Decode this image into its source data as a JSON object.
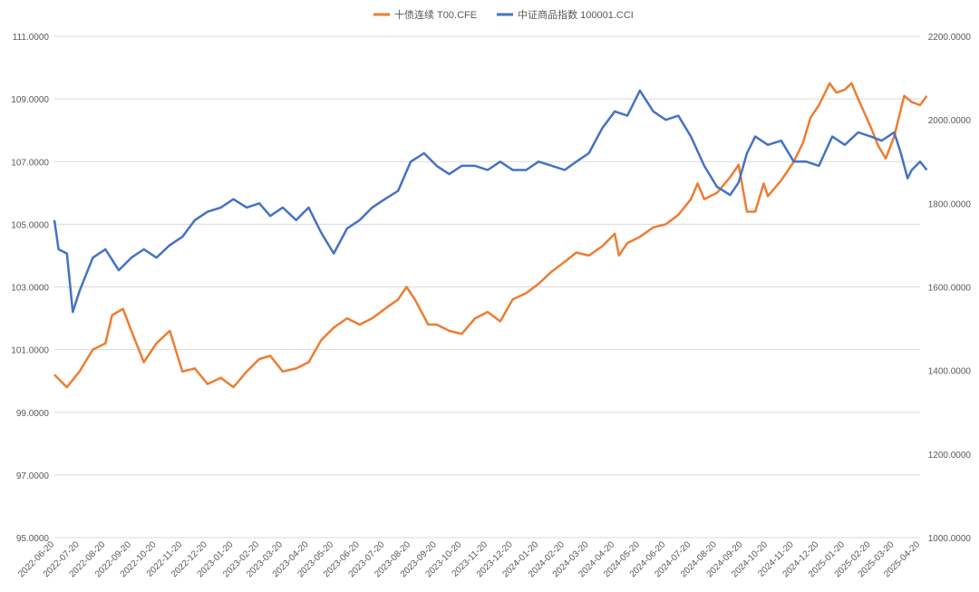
{
  "chart_data": {
    "type": "line",
    "title": "",
    "legend_position": "top-center",
    "grid": true,
    "x_ticks": [
      "2022-06-20",
      "2022-07-20",
      "2022-08-20",
      "2022-09-20",
      "2022-10-20",
      "2022-11-20",
      "2022-12-20",
      "2023-01-20",
      "2023-02-20",
      "2023-03-20",
      "2023-04-20",
      "2023-05-20",
      "2023-06-20",
      "2023-07-20",
      "2023-08-20",
      "2023-09-20",
      "2023-10-20",
      "2023-11-20",
      "2023-12-20",
      "2024-01-20",
      "2024-02-20",
      "2024-03-20",
      "2024-04-20",
      "2024-05-20",
      "2024-06-20",
      "2024-07-20",
      "2024-08-20",
      "2024-09-20",
      "2024-10-20",
      "2024-11-20",
      "2024-12-20",
      "2025-01-20",
      "2025-02-20",
      "2025-03-20",
      "2025-04-20"
    ],
    "y_left": {
      "ticks": [
        "95.0000",
        "97.0000",
        "99.0000",
        "101.0000",
        "103.0000",
        "105.0000",
        "107.0000",
        "109.0000",
        "111.0000"
      ],
      "min": 95,
      "max": 111
    },
    "y_right": {
      "ticks": [
        "1000.0000",
        "1200.0000",
        "1400.0000",
        "1600.0000",
        "1800.0000",
        "2000.0000",
        "2200.0000"
      ],
      "min": 1000,
      "max": 2200
    },
    "series": [
      {
        "name": "十债连续 T00.CFE",
        "axis": "left",
        "color": "#ED7D31",
        "points": [
          [
            "2022-06-20",
            100.2
          ],
          [
            "2022-07-05",
            99.8
          ],
          [
            "2022-07-20",
            100.3
          ],
          [
            "2022-08-05",
            101.0
          ],
          [
            "2022-08-20",
            101.2
          ],
          [
            "2022-08-28",
            102.1
          ],
          [
            "2022-09-10",
            102.3
          ],
          [
            "2022-09-20",
            101.6
          ],
          [
            "2022-10-05",
            100.6
          ],
          [
            "2022-10-20",
            101.2
          ],
          [
            "2022-11-05",
            101.6
          ],
          [
            "2022-11-20",
            100.3
          ],
          [
            "2022-12-05",
            100.4
          ],
          [
            "2022-12-20",
            99.9
          ],
          [
            "2023-01-05",
            100.1
          ],
          [
            "2023-01-20",
            99.8
          ],
          [
            "2023-02-05",
            100.3
          ],
          [
            "2023-02-20",
            100.7
          ],
          [
            "2023-03-05",
            100.8
          ],
          [
            "2023-03-20",
            100.3
          ],
          [
            "2023-04-05",
            100.4
          ],
          [
            "2023-04-20",
            100.6
          ],
          [
            "2023-05-05",
            101.3
          ],
          [
            "2023-05-20",
            101.7
          ],
          [
            "2023-06-05",
            102.0
          ],
          [
            "2023-06-20",
            101.8
          ],
          [
            "2023-07-05",
            102.0
          ],
          [
            "2023-07-20",
            102.3
          ],
          [
            "2023-08-05",
            102.6
          ],
          [
            "2023-08-15",
            103.0
          ],
          [
            "2023-08-25",
            102.6
          ],
          [
            "2023-09-10",
            101.8
          ],
          [
            "2023-09-20",
            101.8
          ],
          [
            "2023-10-05",
            101.6
          ],
          [
            "2023-10-20",
            101.5
          ],
          [
            "2023-11-05",
            102.0
          ],
          [
            "2023-11-20",
            102.2
          ],
          [
            "2023-12-05",
            101.9
          ],
          [
            "2023-12-20",
            102.6
          ],
          [
            "2024-01-05",
            102.8
          ],
          [
            "2024-01-20",
            103.1
          ],
          [
            "2024-02-05",
            103.5
          ],
          [
            "2024-02-20",
            103.8
          ],
          [
            "2024-03-05",
            104.1
          ],
          [
            "2024-03-20",
            104.0
          ],
          [
            "2024-04-05",
            104.3
          ],
          [
            "2024-04-20",
            104.7
          ],
          [
            "2024-04-25",
            104.0
          ],
          [
            "2024-05-05",
            104.4
          ],
          [
            "2024-05-20",
            104.6
          ],
          [
            "2024-06-05",
            104.9
          ],
          [
            "2024-06-20",
            105.0
          ],
          [
            "2024-07-05",
            105.3
          ],
          [
            "2024-07-20",
            105.8
          ],
          [
            "2024-07-28",
            106.3
          ],
          [
            "2024-08-05",
            105.8
          ],
          [
            "2024-08-20",
            106.0
          ],
          [
            "2024-09-05",
            106.5
          ],
          [
            "2024-09-15",
            106.9
          ],
          [
            "2024-09-25",
            105.4
          ],
          [
            "2024-10-05",
            105.4
          ],
          [
            "2024-10-15",
            106.3
          ],
          [
            "2024-10-20",
            105.9
          ],
          [
            "2024-11-05",
            106.4
          ],
          [
            "2024-11-20",
            107.0
          ],
          [
            "2024-12-01",
            107.6
          ],
          [
            "2024-12-10",
            108.4
          ],
          [
            "2024-12-20",
            108.8
          ],
          [
            "2025-01-02",
            109.5
          ],
          [
            "2025-01-10",
            109.2
          ],
          [
            "2025-01-20",
            109.3
          ],
          [
            "2025-01-28",
            109.5
          ],
          [
            "2025-02-05",
            109.0
          ],
          [
            "2025-02-20",
            108.1
          ],
          [
            "2025-03-01",
            107.5
          ],
          [
            "2025-03-10",
            107.1
          ],
          [
            "2025-03-20",
            107.8
          ],
          [
            "2025-04-01",
            109.1
          ],
          [
            "2025-04-10",
            108.9
          ],
          [
            "2025-04-20",
            108.8
          ],
          [
            "2025-04-28",
            109.1
          ]
        ]
      },
      {
        "name": "中证商品指数 100001.CCI",
        "axis": "right",
        "color": "#4472C4",
        "points": [
          [
            "2022-06-20",
            1760
          ],
          [
            "2022-06-25",
            1690
          ],
          [
            "2022-07-05",
            1680
          ],
          [
            "2022-07-12",
            1540
          ],
          [
            "2022-07-20",
            1590
          ],
          [
            "2022-08-05",
            1670
          ],
          [
            "2022-08-20",
            1690
          ],
          [
            "2022-09-05",
            1640
          ],
          [
            "2022-09-20",
            1670
          ],
          [
            "2022-10-05",
            1690
          ],
          [
            "2022-10-20",
            1670
          ],
          [
            "2022-11-05",
            1700
          ],
          [
            "2022-11-20",
            1720
          ],
          [
            "2022-12-05",
            1760
          ],
          [
            "2022-12-20",
            1780
          ],
          [
            "2023-01-05",
            1790
          ],
          [
            "2023-01-20",
            1810
          ],
          [
            "2023-02-05",
            1790
          ],
          [
            "2023-02-20",
            1800
          ],
          [
            "2023-03-05",
            1770
          ],
          [
            "2023-03-20",
            1790
          ],
          [
            "2023-04-05",
            1760
          ],
          [
            "2023-04-20",
            1790
          ],
          [
            "2023-05-05",
            1730
          ],
          [
            "2023-05-20",
            1680
          ],
          [
            "2023-06-05",
            1740
          ],
          [
            "2023-06-20",
            1760
          ],
          [
            "2023-07-05",
            1790
          ],
          [
            "2023-07-20",
            1810
          ],
          [
            "2023-08-05",
            1830
          ],
          [
            "2023-08-20",
            1900
          ],
          [
            "2023-09-05",
            1920
          ],
          [
            "2023-09-20",
            1890
          ],
          [
            "2023-10-05",
            1870
          ],
          [
            "2023-10-20",
            1890
          ],
          [
            "2023-11-05",
            1890
          ],
          [
            "2023-11-20",
            1880
          ],
          [
            "2023-12-05",
            1900
          ],
          [
            "2023-12-20",
            1880
          ],
          [
            "2024-01-05",
            1880
          ],
          [
            "2024-01-20",
            1900
          ],
          [
            "2024-02-05",
            1890
          ],
          [
            "2024-02-20",
            1880
          ],
          [
            "2024-03-05",
            1900
          ],
          [
            "2024-03-20",
            1920
          ],
          [
            "2024-04-05",
            1980
          ],
          [
            "2024-04-20",
            2020
          ],
          [
            "2024-05-05",
            2010
          ],
          [
            "2024-05-20",
            2070
          ],
          [
            "2024-06-05",
            2020
          ],
          [
            "2024-06-20",
            2000
          ],
          [
            "2024-07-05",
            2010
          ],
          [
            "2024-07-20",
            1960
          ],
          [
            "2024-08-05",
            1890
          ],
          [
            "2024-08-20",
            1840
          ],
          [
            "2024-09-05",
            1820
          ],
          [
            "2024-09-15",
            1850
          ],
          [
            "2024-09-25",
            1920
          ],
          [
            "2024-10-05",
            1960
          ],
          [
            "2024-10-20",
            1940
          ],
          [
            "2024-11-05",
            1950
          ],
          [
            "2024-11-20",
            1900
          ],
          [
            "2024-12-05",
            1900
          ],
          [
            "2024-12-20",
            1890
          ],
          [
            "2025-01-05",
            1960
          ],
          [
            "2025-01-20",
            1940
          ],
          [
            "2025-02-05",
            1970
          ],
          [
            "2025-02-20",
            1960
          ],
          [
            "2025-03-05",
            1950
          ],
          [
            "2025-03-20",
            1970
          ],
          [
            "2025-03-28",
            1920
          ],
          [
            "2025-04-05",
            1860
          ],
          [
            "2025-04-10",
            1880
          ],
          [
            "2025-04-20",
            1900
          ],
          [
            "2025-04-28",
            1880
          ]
        ]
      }
    ]
  }
}
